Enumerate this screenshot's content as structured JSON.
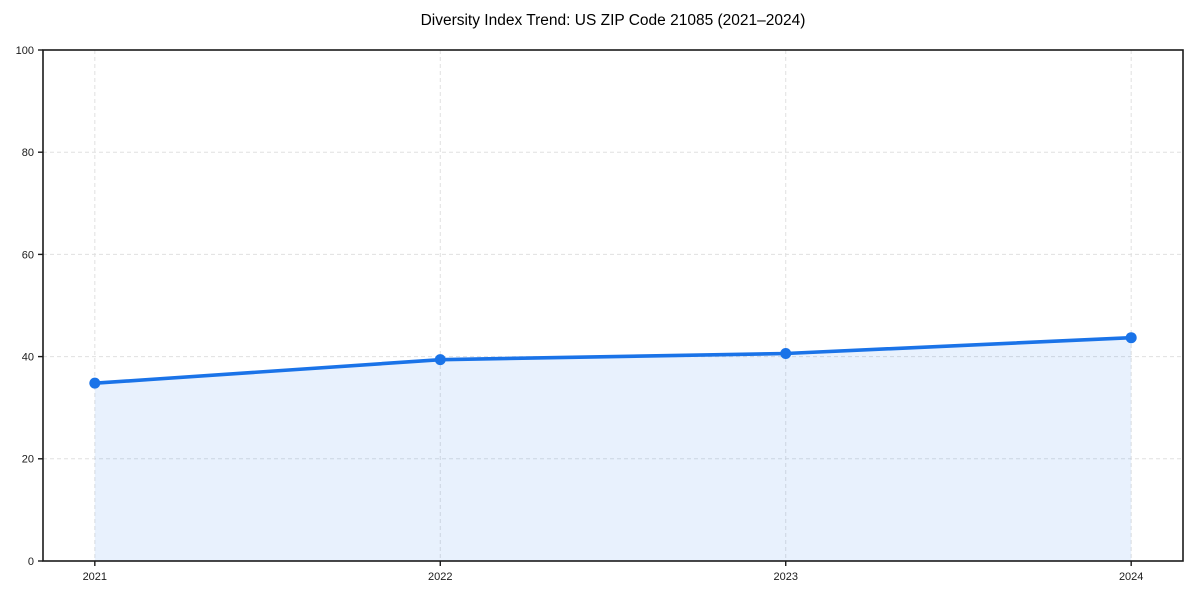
{
  "chart_data": {
    "type": "area",
    "title": "Diversity Index Trend: US ZIP Code 21085 (2021–2024)",
    "x": [
      2021,
      2022,
      2023,
      2024
    ],
    "values": [
      34.8,
      39.4,
      40.6,
      43.7
    ],
    "xlabel": "",
    "ylabel": "",
    "xlim": [
      2020.85,
      2024.15
    ],
    "ylim": [
      0,
      100
    ],
    "xticks": [
      2021,
      2022,
      2023,
      2024
    ],
    "xtick_labels": [
      "2021",
      "2022",
      "2023",
      "2024"
    ],
    "yticks": [
      0,
      20,
      40,
      60,
      80,
      100
    ],
    "ytick_labels": [
      "0",
      "20",
      "40",
      "60",
      "80",
      "100"
    ],
    "grid": true,
    "grid_style": "dashed",
    "legend": "none",
    "colors": {
      "line": "#1a73e8",
      "marker": "#1a73e8",
      "fill": "#1a73e8",
      "fill_opacity": 0.1,
      "grid": "#e0e0e0",
      "spine": "#1a1a1a",
      "tick_label": "#1a1a1a",
      "title": "#000000",
      "background": "#ffffff"
    }
  }
}
